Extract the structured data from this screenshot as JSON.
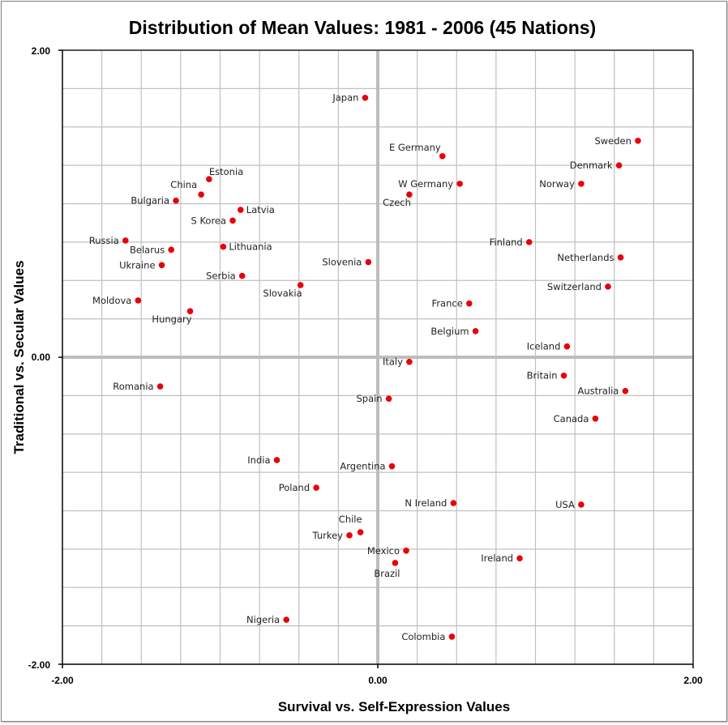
{
  "chart_data": {
    "type": "scatter",
    "title": "Distribution of Mean Values: 1981 - 2006 (45 Nations)",
    "xlabel": "Survival vs. Self-Expression Values",
    "ylabel": "Traditional vs. Secular Values",
    "xlim": [
      -2.0,
      2.0
    ],
    "ylim": [
      -2.0,
      2.0
    ],
    "x_ticks": [
      "-2.00",
      "0.00",
      "2.00"
    ],
    "y_ticks": [
      "2.00",
      "0.00",
      "-2.00"
    ],
    "grid_step": 0.25,
    "grid": true,
    "legend": "none",
    "marker_color": "#e8000b",
    "points": [
      {
        "name": "Japan",
        "x": -0.08,
        "y": 1.69,
        "label_pos": "left"
      },
      {
        "name": "E Germany",
        "x": 0.41,
        "y": 1.31,
        "label_pos": "above-left"
      },
      {
        "name": "W Germany",
        "x": 0.52,
        "y": 1.13,
        "label_pos": "left"
      },
      {
        "name": "Czech",
        "x": 0.2,
        "y": 1.06,
        "label_pos": "below-left"
      },
      {
        "name": "Sweden",
        "x": 1.65,
        "y": 1.41,
        "label_pos": "left"
      },
      {
        "name": "Denmark",
        "x": 1.53,
        "y": 1.25,
        "label_pos": "left"
      },
      {
        "name": "Norway",
        "x": 1.29,
        "y": 1.13,
        "label_pos": "left"
      },
      {
        "name": "Estonia",
        "x": -1.07,
        "y": 1.16,
        "label_pos": "above-right"
      },
      {
        "name": "China",
        "x": -1.12,
        "y": 1.06,
        "label_pos": "above-left"
      },
      {
        "name": "Bulgaria",
        "x": -1.28,
        "y": 1.02,
        "label_pos": "left"
      },
      {
        "name": "Latvia",
        "x": -0.87,
        "y": 0.96,
        "label_pos": "right"
      },
      {
        "name": "S Korea",
        "x": -0.92,
        "y": 0.89,
        "label_pos": "left"
      },
      {
        "name": "Russia",
        "x": -1.6,
        "y": 0.76,
        "label_pos": "left"
      },
      {
        "name": "Belarus",
        "x": -1.31,
        "y": 0.7,
        "label_pos": "left"
      },
      {
        "name": "Lithuania",
        "x": -0.98,
        "y": 0.72,
        "label_pos": "right"
      },
      {
        "name": "Ukraine",
        "x": -1.37,
        "y": 0.6,
        "label_pos": "left"
      },
      {
        "name": "Serbia",
        "x": -0.86,
        "y": 0.53,
        "label_pos": "left"
      },
      {
        "name": "Slovenia",
        "x": -0.06,
        "y": 0.62,
        "label_pos": "left"
      },
      {
        "name": "Slovakia",
        "x": -0.49,
        "y": 0.47,
        "label_pos": "below-left"
      },
      {
        "name": "Moldova",
        "x": -1.52,
        "y": 0.37,
        "label_pos": "left"
      },
      {
        "name": "Hungary",
        "x": -1.19,
        "y": 0.3,
        "label_pos": "below-left"
      },
      {
        "name": "Finland",
        "x": 0.96,
        "y": 0.75,
        "label_pos": "left"
      },
      {
        "name": "Netherlands",
        "x": 1.54,
        "y": 0.65,
        "label_pos": "left"
      },
      {
        "name": "Switzerland",
        "x": 1.46,
        "y": 0.46,
        "label_pos": "left"
      },
      {
        "name": "France",
        "x": 0.58,
        "y": 0.35,
        "label_pos": "left"
      },
      {
        "name": "Belgium",
        "x": 0.62,
        "y": 0.17,
        "label_pos": "left"
      },
      {
        "name": "Iceland",
        "x": 1.2,
        "y": 0.07,
        "label_pos": "left"
      },
      {
        "name": "Italy",
        "x": 0.2,
        "y": -0.03,
        "label_pos": "left"
      },
      {
        "name": "Britain",
        "x": 1.18,
        "y": -0.12,
        "label_pos": "left"
      },
      {
        "name": "Australia",
        "x": 1.57,
        "y": -0.22,
        "label_pos": "left"
      },
      {
        "name": "Romania",
        "x": -1.38,
        "y": -0.19,
        "label_pos": "left"
      },
      {
        "name": "Spain",
        "x": 0.07,
        "y": -0.27,
        "label_pos": "left"
      },
      {
        "name": "Canada",
        "x": 1.38,
        "y": -0.4,
        "label_pos": "left"
      },
      {
        "name": "India",
        "x": -0.64,
        "y": -0.67,
        "label_pos": "left"
      },
      {
        "name": "Argentina",
        "x": 0.09,
        "y": -0.71,
        "label_pos": "left"
      },
      {
        "name": "Poland",
        "x": -0.39,
        "y": -0.85,
        "label_pos": "left"
      },
      {
        "name": "N Ireland",
        "x": 0.48,
        "y": -0.95,
        "label_pos": "left"
      },
      {
        "name": "USA",
        "x": 1.29,
        "y": -0.96,
        "label_pos": "left"
      },
      {
        "name": "Chile",
        "x": -0.11,
        "y": -1.14,
        "label_pos": "above-left"
      },
      {
        "name": "Turkey",
        "x": -0.18,
        "y": -1.16,
        "label_pos": "left"
      },
      {
        "name": "Mexico",
        "x": 0.18,
        "y": -1.26,
        "label_pos": "left"
      },
      {
        "name": "Ireland",
        "x": 0.9,
        "y": -1.31,
        "label_pos": "left"
      },
      {
        "name": "Brazil",
        "x": 0.11,
        "y": -1.34,
        "label_pos": "below-left"
      },
      {
        "name": "Nigeria",
        "x": -0.58,
        "y": -1.71,
        "label_pos": "left"
      },
      {
        "name": "Colombia",
        "x": 0.47,
        "y": -1.82,
        "label_pos": "left"
      }
    ]
  }
}
